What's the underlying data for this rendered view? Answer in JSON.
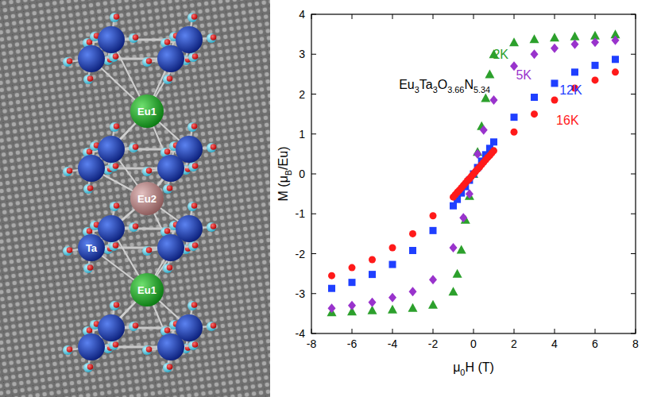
{
  "chart_data": {
    "type": "scatter",
    "xlabel": "μ0H (T)",
    "ylabel": "M (μB/Eu)",
    "annotations": [
      "Eu3Ta3O3.66N5.34"
    ],
    "xlim": [
      -8,
      8
    ],
    "ylim": [
      -4,
      4
    ],
    "xticks": [
      -8,
      -6,
      -4,
      -2,
      0,
      2,
      4,
      6,
      8
    ],
    "yticks": [
      -4,
      -3,
      -2,
      -1,
      0,
      1,
      2,
      3,
      4
    ],
    "series": [
      {
        "name": "2K",
        "color": "#2ca02c",
        "marker": "triangle",
        "x": [
          -7,
          -6,
          -5,
          -4,
          -3,
          -2,
          -1,
          -0.8,
          -0.6,
          -0.4,
          -0.2,
          0,
          0.2,
          0.4,
          0.6,
          0.8,
          1,
          2,
          3,
          4,
          5,
          6,
          7
        ],
        "values": [
          -3.47,
          -3.45,
          -3.42,
          -3.4,
          -3.36,
          -3.28,
          -2.95,
          -2.5,
          -1.9,
          -1.15,
          -0.55,
          0,
          0.55,
          1.2,
          1.9,
          2.5,
          3.0,
          3.3,
          3.38,
          3.42,
          3.45,
          3.47,
          3.5
        ]
      },
      {
        "name": "5K",
        "color": "#9933cc",
        "marker": "diamond",
        "x": [
          -7,
          -6,
          -5,
          -4,
          -3,
          -2,
          -1,
          -0.5,
          -0.2,
          0,
          0.2,
          0.5,
          1,
          2,
          3,
          4,
          5,
          6,
          7
        ],
        "values": [
          -3.37,
          -3.3,
          -3.22,
          -3.1,
          -2.95,
          -2.65,
          -1.85,
          -1.1,
          -0.5,
          0,
          0.5,
          1.1,
          1.85,
          2.7,
          3.0,
          3.15,
          3.25,
          3.3,
          3.35
        ]
      },
      {
        "name": "12K",
        "color": "#1f3fff",
        "marker": "square",
        "x": [
          -7,
          -6,
          -5,
          -4,
          -3,
          -2,
          -1,
          -0.8,
          -0.6,
          -0.4,
          -0.2,
          0,
          0.2,
          0.4,
          0.6,
          0.8,
          1,
          2,
          3,
          4,
          5,
          6,
          7
        ],
        "values": [
          -2.87,
          -2.72,
          -2.52,
          -2.27,
          -1.92,
          -1.42,
          -0.8,
          -0.64,
          -0.48,
          -0.32,
          -0.16,
          0,
          0.16,
          0.32,
          0.48,
          0.64,
          0.8,
          1.42,
          1.92,
          2.27,
          2.55,
          2.72,
          2.87
        ]
      },
      {
        "name": "16K",
        "color": "#ff1a1a",
        "marker": "circle",
        "x": [
          -7,
          -6,
          -5,
          -4,
          -3,
          -2,
          -1,
          -0.9,
          -0.8,
          -0.7,
          -0.6,
          -0.5,
          -0.4,
          -0.3,
          -0.2,
          -0.1,
          0,
          0.1,
          0.2,
          0.3,
          0.4,
          0.5,
          0.6,
          0.7,
          0.8,
          0.9,
          1,
          2,
          3,
          4,
          5,
          6,
          7
        ],
        "values": [
          -2.55,
          -2.35,
          -2.15,
          -1.85,
          -1.5,
          -1.05,
          -0.58,
          -0.52,
          -0.46,
          -0.41,
          -0.35,
          -0.29,
          -0.23,
          -0.17,
          -0.12,
          -0.06,
          0,
          0.06,
          0.12,
          0.17,
          0.23,
          0.29,
          0.35,
          0.41,
          0.46,
          0.52,
          0.58,
          1.05,
          1.5,
          1.85,
          2.15,
          2.35,
          2.55
        ]
      }
    ]
  },
  "diagram": {
    "atoms": [
      "Eu1",
      "Eu2",
      "Eu1",
      "Ta"
    ]
  }
}
